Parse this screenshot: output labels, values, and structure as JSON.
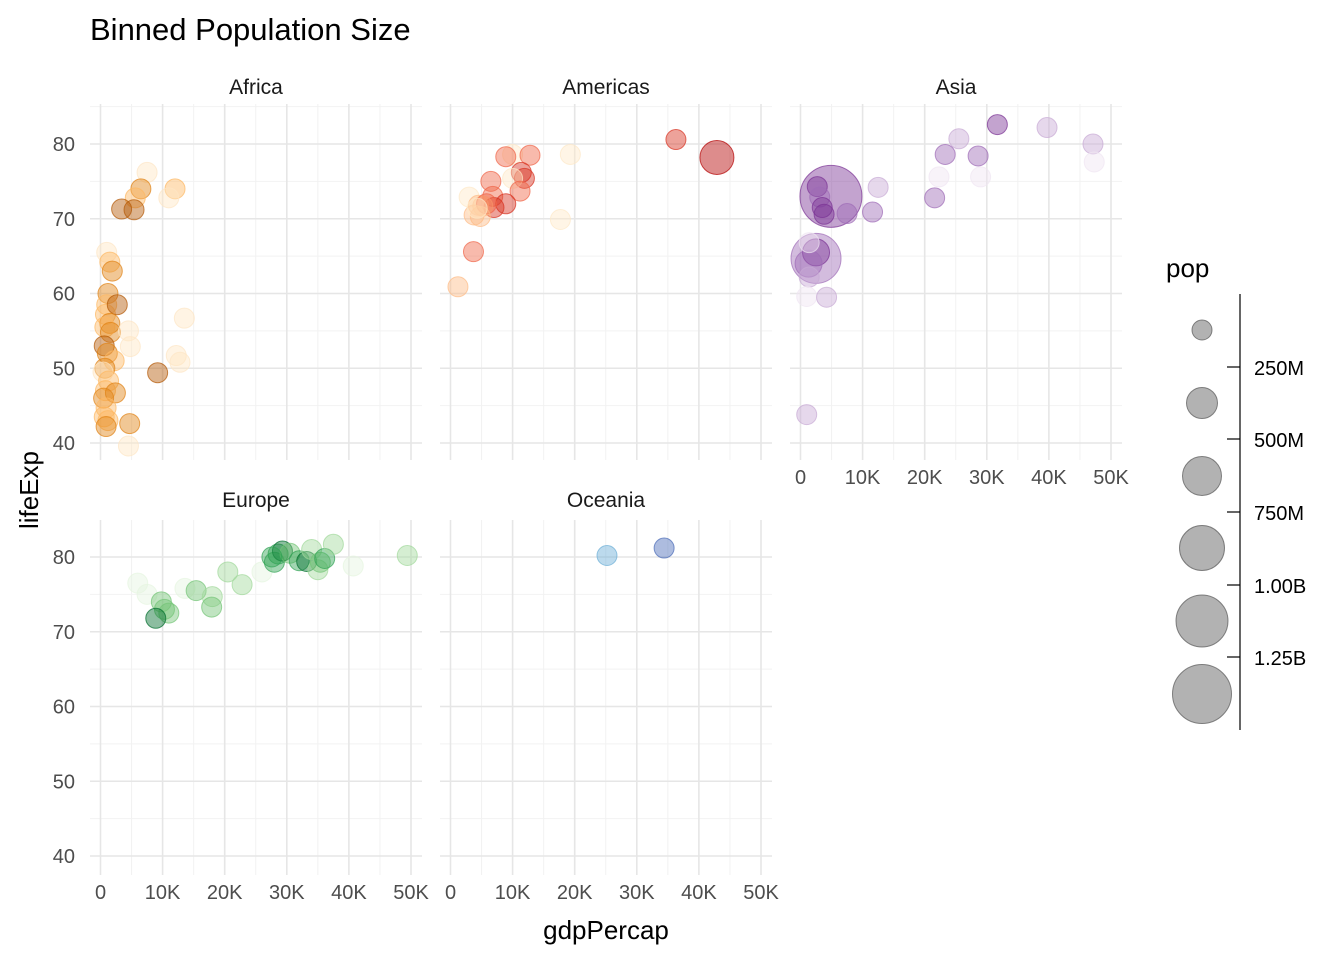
{
  "chart_data": {
    "type": "scatter",
    "title": "Binned Population Size",
    "xlabel": "gdpPercap",
    "ylabel": "lifeExp",
    "xlim": [
      0,
      50000
    ],
    "ylim": [
      40,
      83
    ],
    "x_ticks": [
      0,
      10000,
      20000,
      30000,
      40000,
      50000
    ],
    "x_tick_labels": [
      "0",
      "10K",
      "20K",
      "30K",
      "40K",
      "50K"
    ],
    "y_ticks": [
      40,
      50,
      60,
      70,
      80
    ],
    "y_tick_labels": [
      "40",
      "50",
      "60",
      "70",
      "80"
    ],
    "grid": true,
    "facets": [
      "Africa",
      "Americas",
      "Asia",
      "Europe",
      "Oceania"
    ],
    "legend": {
      "title": "pop",
      "placement": "right",
      "breaks": [
        250000000,
        500000000,
        750000000,
        1000000000,
        1250000000
      ],
      "break_labels": [
        "250M",
        "500M",
        "750M",
        "1.00B",
        "1.25B"
      ],
      "size_bins": [
        1,
        2,
        3,
        4,
        5,
        6
      ],
      "color": "#7f7f7f"
    },
    "palettes": {
      "Africa": [
        "#fee6c4",
        "#fdb863",
        "#e08214",
        "#b35806",
        "#7f3b08"
      ],
      "Americas": [
        "#fee8c8",
        "#fdbb84",
        "#ef6548",
        "#d7301f",
        "#b30000"
      ],
      "Asia": [
        "#efe5f2",
        "#c7a9d4",
        "#9e6bb6",
        "#7b3294",
        "#542788"
      ],
      "Europe": [
        "#e5f5e0",
        "#a1d99b",
        "#74c476",
        "#31a354",
        "#006d2c"
      ],
      "Oceania": [
        "#9ecae1",
        "#6baed6",
        "#4a6bb8",
        "#2c3f9e",
        "#08306b"
      ]
    },
    "series": [
      {
        "facet": "Africa",
        "points": [
          [
            7500,
            76.2,
            1,
            1
          ],
          [
            6500,
            74.0,
            1,
            3
          ],
          [
            5600,
            72.8,
            1,
            2
          ],
          [
            12000,
            74.0,
            1,
            2
          ],
          [
            11000,
            72.8,
            1,
            1
          ],
          [
            3400,
            71.3,
            1,
            4
          ],
          [
            5400,
            71.2,
            1,
            4
          ],
          [
            1000,
            65.5,
            1,
            1
          ],
          [
            1500,
            64.2,
            1,
            2
          ],
          [
            1900,
            63.0,
            1,
            3
          ],
          [
            1200,
            60.0,
            1,
            3
          ],
          [
            1000,
            58.5,
            1,
            2
          ],
          [
            800,
            57.2,
            1,
            2
          ],
          [
            2700,
            58.5,
            1,
            4
          ],
          [
            1500,
            56.0,
            1,
            3
          ],
          [
            700,
            55.5,
            1,
            2
          ],
          [
            1600,
            54.8,
            1,
            3
          ],
          [
            4500,
            55.0,
            1,
            1
          ],
          [
            4800,
            52.9,
            1,
            1
          ],
          [
            600,
            53.0,
            1,
            4
          ],
          [
            1100,
            52.0,
            1,
            3
          ],
          [
            2200,
            51.0,
            1,
            2
          ],
          [
            700,
            50.0,
            1,
            3
          ],
          [
            400,
            49.5,
            1,
            1
          ],
          [
            9200,
            49.4,
            1,
            4
          ],
          [
            12200,
            51.7,
            1,
            1
          ],
          [
            12800,
            50.8,
            1,
            1
          ],
          [
            13500,
            56.7,
            1,
            1
          ],
          [
            1300,
            48.3,
            1,
            2
          ],
          [
            800,
            47.0,
            1,
            2
          ],
          [
            2400,
            46.7,
            1,
            3
          ],
          [
            500,
            46.0,
            1,
            3
          ],
          [
            900,
            44.7,
            1,
            2
          ],
          [
            600,
            43.5,
            1,
            2
          ],
          [
            1200,
            43.0,
            1,
            2
          ],
          [
            4700,
            42.6,
            1,
            3
          ],
          [
            900,
            42.2,
            1,
            3
          ],
          [
            4500,
            39.6,
            1,
            1
          ]
        ]
      },
      {
        "facet": "Americas",
        "points": [
          [
            36300,
            80.6,
            1,
            4
          ],
          [
            42900,
            78.2,
            3,
            5
          ],
          [
            19300,
            78.6,
            1,
            1
          ],
          [
            10000,
            78.6,
            1,
            1
          ],
          [
            12800,
            78.5,
            1,
            3
          ],
          [
            8900,
            78.3,
            1,
            3
          ],
          [
            11400,
            76.2,
            1,
            4
          ],
          [
            11900,
            75.4,
            1,
            4
          ],
          [
            6500,
            75.0,
            1,
            3
          ],
          [
            10000,
            75.4,
            1,
            1
          ],
          [
            3000,
            72.9,
            1,
            1
          ],
          [
            6800,
            73.0,
            1,
            3
          ],
          [
            11200,
            73.7,
            1,
            3
          ],
          [
            8900,
            72.0,
            1,
            4
          ],
          [
            7000,
            71.5,
            1,
            4
          ],
          [
            5200,
            71.7,
            1,
            2
          ],
          [
            4500,
            71.8,
            1,
            2
          ],
          [
            5800,
            72.0,
            1,
            3
          ],
          [
            3800,
            70.5,
            1,
            2
          ],
          [
            4800,
            70.3,
            1,
            2
          ],
          [
            4300,
            71.4,
            1,
            1
          ],
          [
            17700,
            69.9,
            1,
            1
          ],
          [
            3700,
            65.6,
            1,
            3
          ],
          [
            1200,
            60.9,
            1,
            2
          ]
        ]
      },
      {
        "facet": "Asia",
        "points": [
          [
            31700,
            82.6,
            1,
            4
          ],
          [
            39700,
            82.2,
            1,
            2
          ],
          [
            25500,
            80.7,
            1,
            2
          ],
          [
            47100,
            80.0,
            1,
            2
          ],
          [
            47300,
            77.6,
            1,
            1
          ],
          [
            23300,
            78.6,
            1,
            3
          ],
          [
            28600,
            78.4,
            1,
            3
          ],
          [
            22300,
            75.6,
            1,
            1
          ],
          [
            29000,
            75.6,
            1,
            1
          ],
          [
            4900,
            73.0,
            6,
            4
          ],
          [
            12500,
            74.2,
            1,
            2
          ],
          [
            2700,
            74.3,
            1,
            4
          ],
          [
            21600,
            72.8,
            1,
            3
          ],
          [
            3100,
            72.9,
            1,
            3
          ],
          [
            3500,
            71.5,
            1,
            4
          ],
          [
            7500,
            70.7,
            1,
            3
          ],
          [
            11600,
            70.9,
            1,
            3
          ],
          [
            3800,
            70.6,
            1,
            4
          ],
          [
            1400,
            66.8,
            1,
            1
          ],
          [
            2500,
            65.5,
            2,
            4
          ],
          [
            2500,
            64.7,
            5,
            3
          ],
          [
            1300,
            64.0,
            2,
            3
          ],
          [
            1400,
            62.2,
            1,
            2
          ],
          [
            1000,
            59.6,
            1,
            1
          ],
          [
            4200,
            59.5,
            1,
            2
          ],
          [
            1000,
            43.8,
            1,
            2
          ]
        ]
      },
      {
        "facet": "Europe",
        "points": [
          [
            6000,
            76.5,
            1,
            1
          ],
          [
            7500,
            75.0,
            1,
            1
          ],
          [
            13600,
            75.8,
            1,
            1
          ],
          [
            15400,
            75.5,
            1,
            3
          ],
          [
            18000,
            74.7,
            1,
            2
          ],
          [
            9800,
            74.0,
            1,
            3
          ],
          [
            10300,
            73.0,
            1,
            3
          ],
          [
            11000,
            72.5,
            1,
            3
          ],
          [
            8900,
            71.8,
            1,
            5
          ],
          [
            17900,
            73.3,
            1,
            3
          ],
          [
            20500,
            78.0,
            1,
            2
          ],
          [
            22800,
            76.3,
            1,
            2
          ],
          [
            26000,
            78.0,
            1,
            1
          ],
          [
            28000,
            79.3,
            1,
            4
          ],
          [
            28600,
            80.4,
            1,
            4
          ],
          [
            29300,
            80.8,
            1,
            5
          ],
          [
            30500,
            80.5,
            1,
            3
          ],
          [
            32000,
            79.5,
            1,
            4
          ],
          [
            33200,
            79.4,
            1,
            5
          ],
          [
            34000,
            81.0,
            1,
            2
          ],
          [
            35000,
            78.3,
            1,
            2
          ],
          [
            35400,
            79.3,
            1,
            3
          ],
          [
            36100,
            79.8,
            1,
            4
          ],
          [
            37500,
            81.7,
            1,
            2
          ],
          [
            40700,
            78.8,
            1,
            1
          ],
          [
            49400,
            80.2,
            1,
            2
          ],
          [
            27600,
            80.0,
            1,
            4
          ]
        ]
      },
      {
        "facet": "Oceania",
        "points": [
          [
            25200,
            80.2,
            1,
            2
          ],
          [
            34400,
            81.2,
            1,
            3
          ]
        ]
      }
    ]
  }
}
